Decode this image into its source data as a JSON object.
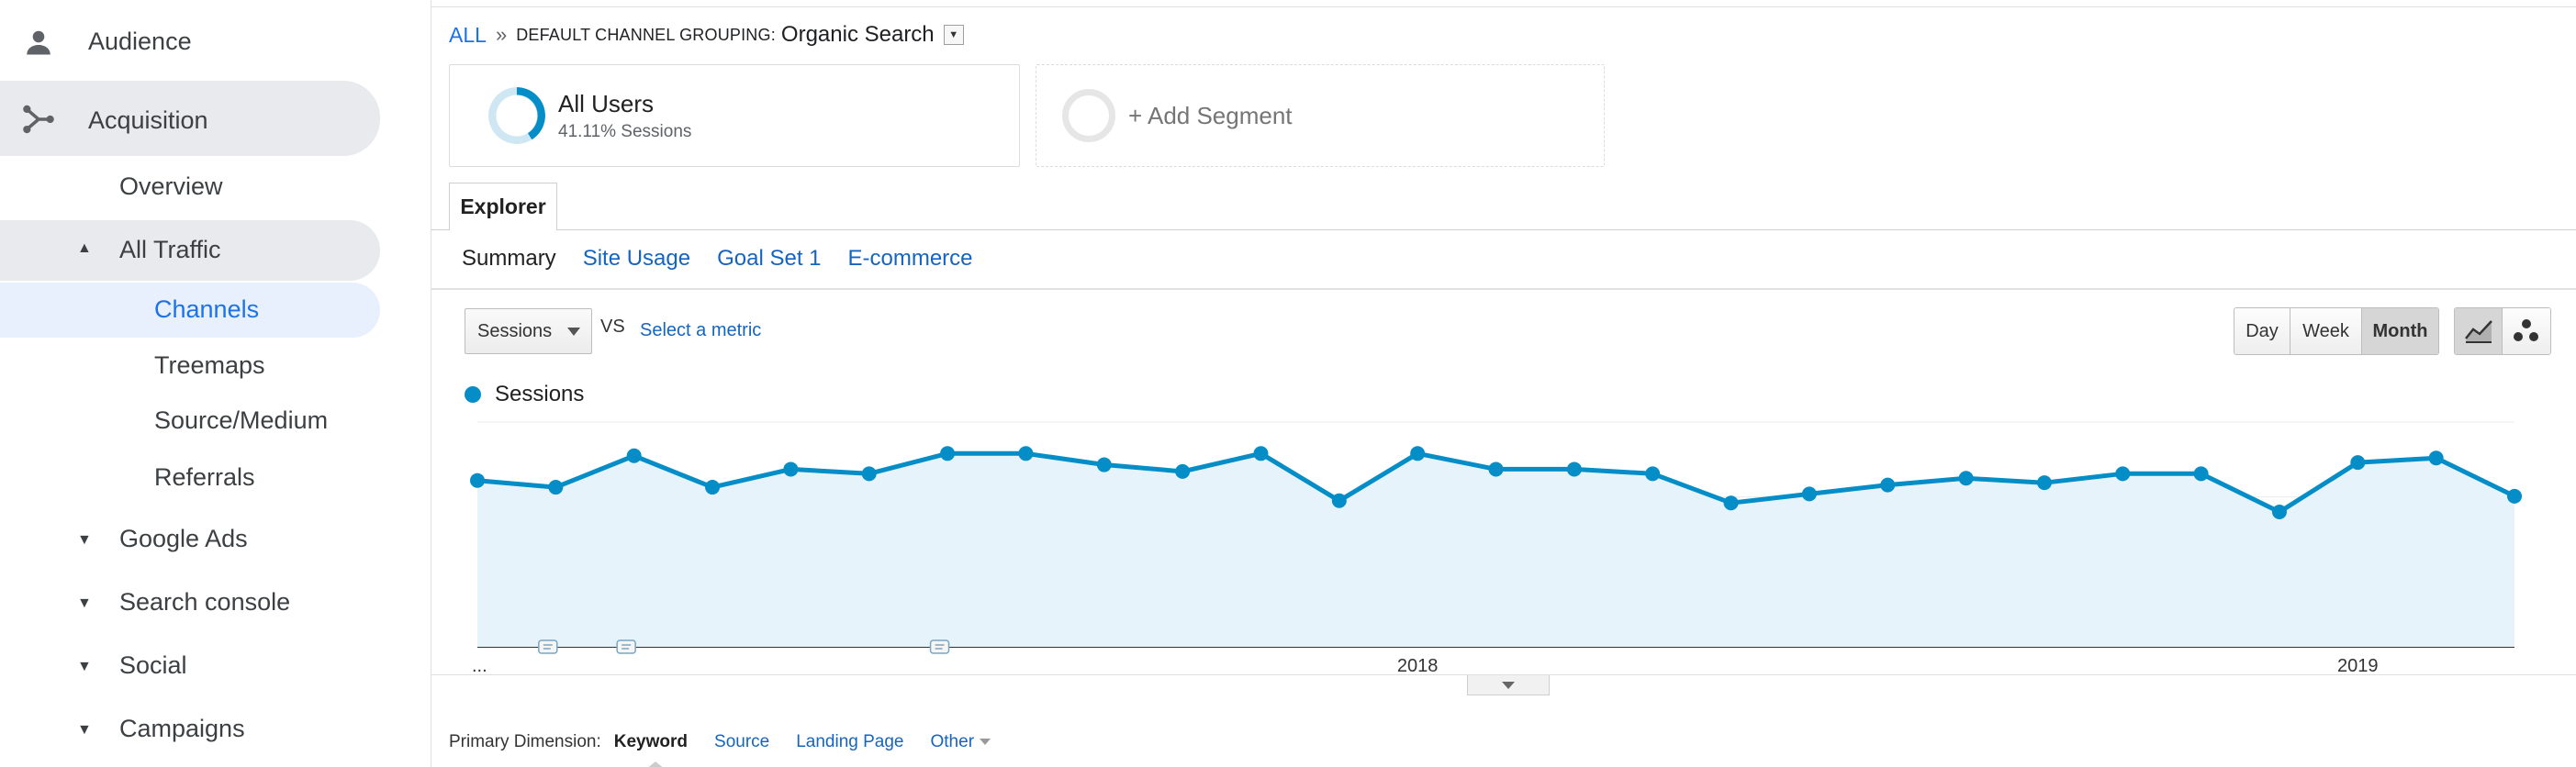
{
  "sidebar": {
    "items": [
      {
        "label": "Audience",
        "icon": "person-icon"
      },
      {
        "label": "Acquisition",
        "icon": "acquisition-icon"
      },
      {
        "label": "Overview"
      },
      {
        "label": "All Traffic"
      },
      {
        "label": "Channels"
      },
      {
        "label": "Treemaps"
      },
      {
        "label": "Source/Medium"
      },
      {
        "label": "Referrals"
      },
      {
        "label": "Google Ads"
      },
      {
        "label": "Search console"
      },
      {
        "label": "Social"
      },
      {
        "label": "Campaigns"
      }
    ]
  },
  "breadcrumb": {
    "all": "ALL",
    "separator": "»",
    "label": "DEFAULT CHANNEL GROUPING:",
    "value": "Organic Search"
  },
  "segments": {
    "current": {
      "title": "All Users",
      "subtitle": "41.11% Sessions",
      "percent": 41.11
    },
    "add_label": "+ Add Segment"
  },
  "explorer": {
    "tab_label": "Explorer",
    "subtabs": [
      "Summary",
      "Site Usage",
      "Goal Set 1",
      "E-commerce"
    ]
  },
  "controls": {
    "metric": "Sessions",
    "vs": "VS",
    "select_metric": "Select a metric",
    "periods": [
      "Day",
      "Week",
      "Month"
    ],
    "active_period": "Month"
  },
  "colors": {
    "accent": "#058dc7",
    "link": "#1565c0",
    "area": "#e6f3fa",
    "ring_track": "#cfe6f3"
  },
  "chart_data": {
    "type": "area",
    "series": [
      {
        "name": "Sessions",
        "values": [
          74,
          71,
          85,
          71,
          79,
          77,
          86,
          86,
          81,
          78,
          86,
          65,
          86,
          79,
          79,
          77,
          64,
          68,
          72,
          75,
          73,
          77,
          77,
          60,
          82,
          84,
          67
        ]
      }
    ],
    "x_tick_labels": [
      "...",
      "2018",
      "2019"
    ],
    "x_tick_index": [
      0,
      12,
      24
    ],
    "annotation_index": [
      1,
      2,
      6
    ],
    "ylim": [
      0,
      100
    ],
    "grid": true,
    "legend": "top-left"
  },
  "primary_dimension": {
    "label": "Primary Dimension:",
    "items": [
      "Keyword",
      "Source",
      "Landing Page",
      "Other"
    ],
    "active": "Keyword"
  }
}
